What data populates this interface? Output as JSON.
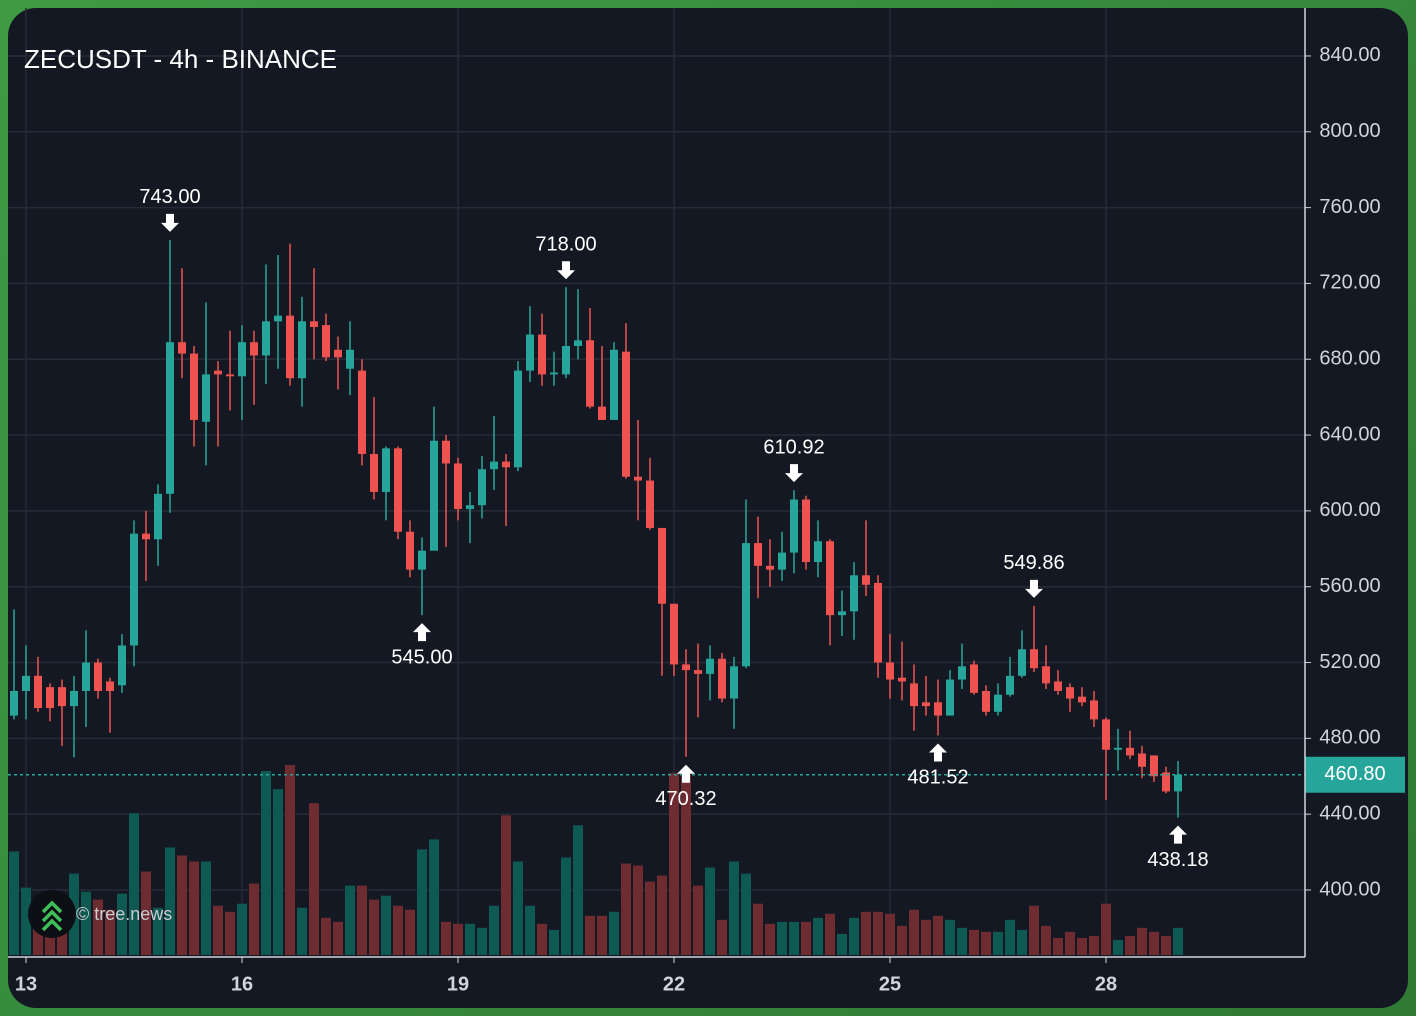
{
  "chart_data": {
    "type": "candlestick",
    "title": "ZECUSDT - 4h - BINANCE",
    "watermark": "© tree.news",
    "categories": [
      null,
      "13",
      null,
      null,
      null,
      null,
      null,
      null,
      null,
      null,
      null,
      null,
      null,
      null,
      null,
      null,
      null,
      null,
      null,
      "16",
      null,
      null,
      null,
      null,
      null,
      null,
      null,
      null,
      null,
      null,
      null,
      null,
      null,
      null,
      null,
      null,
      null,
      "19",
      null,
      null,
      null,
      null,
      null,
      null,
      null,
      null,
      null,
      null,
      null,
      null,
      null,
      null,
      null,
      null,
      null,
      "22",
      null,
      null,
      null,
      null,
      null,
      null,
      null,
      null,
      null,
      null,
      null,
      null,
      null,
      null,
      null,
      null,
      null,
      "25",
      null,
      null,
      null,
      null,
      null,
      null,
      null,
      null,
      null,
      null,
      null,
      null,
      null,
      null,
      null,
      null,
      null,
      "28",
      null,
      null,
      null,
      null,
      null,
      null
    ],
    "open": [
      492,
      505,
      513,
      507,
      507,
      497,
      505,
      520,
      510,
      508,
      529,
      588,
      585,
      609,
      689,
      683,
      647,
      674,
      672,
      671,
      689,
      682,
      700,
      703,
      670,
      700,
      698,
      685,
      675,
      674,
      630,
      610,
      633,
      589,
      569,
      579,
      637,
      625,
      601,
      603,
      622,
      626,
      623,
      674,
      693,
      672,
      672,
      687,
      690,
      655,
      648,
      684,
      618,
      616,
      591,
      551,
      519,
      516,
      514,
      522,
      501,
      518,
      583,
      571,
      569,
      578,
      606,
      573,
      584,
      545,
      547,
      566,
      562,
      520,
      512,
      509,
      499,
      499,
      492,
      511,
      519,
      505,
      494,
      503,
      513,
      527,
      518,
      510,
      507,
      502,
      500,
      490,
      474,
      475,
      472,
      471,
      462,
      452
    ],
    "high": [
      548,
      529,
      523,
      509,
      511,
      513,
      537,
      522,
      512,
      535,
      595,
      600,
      614,
      743,
      728,
      687,
      710,
      679,
      695,
      698,
      695,
      730,
      735,
      741,
      713,
      728,
      704,
      692,
      700,
      680,
      660,
      634,
      634,
      595,
      586,
      655,
      640,
      628,
      610,
      629,
      650,
      630,
      679,
      708,
      704,
      684,
      718,
      717,
      707,
      687,
      689,
      699,
      648,
      628,
      591,
      551,
      527,
      530,
      529,
      525,
      523,
      606,
      597,
      585,
      589,
      610.92,
      608,
      595,
      585,
      558,
      573,
      595,
      566,
      535,
      531,
      519,
      513,
      511,
      516,
      530,
      521,
      508,
      509,
      523,
      537,
      549.86,
      529,
      516,
      509,
      507,
      505,
      491,
      485,
      484,
      476,
      471,
      465,
      468
    ],
    "low": [
      490,
      490,
      494,
      489,
      476,
      470,
      486,
      501,
      483,
      504,
      518,
      563,
      571,
      599,
      670,
      634,
      624,
      634,
      653,
      648,
      656,
      667,
      675,
      666,
      655,
      680,
      679,
      664,
      661,
      624,
      606,
      595,
      585,
      565,
      545,
      583,
      581,
      595,
      583,
      596,
      611,
      592,
      621,
      668,
      666,
      666,
      670,
      680,
      654,
      648,
      648,
      617,
      595,
      590,
      513,
      513,
      470.32,
      491,
      500,
      499,
      485,
      517,
      554,
      560,
      563,
      567,
      569,
      565,
      529,
      534,
      532,
      555,
      512,
      501,
      500,
      484,
      492,
      481.52,
      492,
      506,
      503,
      492,
      492,
      502,
      512,
      515,
      506,
      503,
      494,
      497,
      486,
      447.5,
      463,
      469,
      459,
      457,
      451,
      438.18
    ],
    "close": [
      505,
      513,
      496,
      496,
      497,
      505,
      520,
      505,
      505,
      529,
      588,
      585,
      609,
      689,
      683,
      648,
      672,
      672,
      671,
      689,
      682,
      700,
      703,
      670,
      700,
      697,
      681,
      681,
      685,
      630,
      610,
      633,
      589,
      569,
      579,
      637,
      625,
      601,
      603,
      622,
      626,
      623,
      674,
      693,
      672,
      673,
      687,
      690,
      655,
      648,
      685,
      618,
      616,
      591,
      551,
      519,
      516,
      514,
      522,
      501,
      518,
      583,
      571,
      569,
      578,
      606,
      573,
      584,
      545,
      547,
      566,
      561,
      520,
      511,
      510,
      497,
      497,
      492,
      511,
      518,
      504,
      494,
      503,
      513,
      527,
      517,
      509,
      505,
      501,
      499,
      490,
      474,
      475,
      471,
      465,
      460,
      452,
      460.8
    ],
    "volume": [
      103,
      67,
      55,
      47,
      43,
      81,
      63,
      55,
      45,
      61,
      141,
      83,
      47,
      107,
      99,
      93,
      93,
      49,
      43,
      51,
      71,
      183,
      165,
      189,
      47,
      151,
      37,
      33,
      69,
      69,
      55,
      59,
      49,
      45,
      105,
      115,
      33,
      31,
      31,
      27,
      49,
      139,
      93,
      49,
      31,
      25,
      97,
      129,
      39,
      39,
      43,
      91,
      89,
      73,
      79,
      181,
      181,
      69,
      87,
      35,
      93,
      81,
      51,
      31,
      33,
      33,
      33,
      37,
      41,
      21,
      37,
      43,
      43,
      41,
      29,
      45,
      35,
      39,
      35,
      27,
      25,
      23,
      23,
      35,
      25,
      49,
      29,
      17,
      23,
      17,
      19,
      51,
      15,
      19,
      27,
      23,
      19,
      27
    ],
    "up_color": "#26a69a",
    "down_color": "#ef5350",
    "up_volume_color": "#0f5953",
    "down_volume_color": "#6e2b30",
    "ylim": [
      365.7,
      865.3
    ],
    "yticks": [
      {
        "value": 400,
        "label": "400.00"
      },
      {
        "value": 440,
        "label": "440.00"
      },
      {
        "value": 480,
        "label": "480.00"
      },
      {
        "value": 520,
        "label": "520.00"
      },
      {
        "value": 560,
        "label": "560.00"
      },
      {
        "value": 600,
        "label": "600.00"
      },
      {
        "value": 640,
        "label": "640.00"
      },
      {
        "value": 680,
        "label": "680.00"
      },
      {
        "value": 720,
        "label": "720.00"
      },
      {
        "value": 760,
        "label": "760.00"
      },
      {
        "value": 800,
        "label": "800.00"
      },
      {
        "value": 840,
        "label": "840.00"
      }
    ],
    "grid": true,
    "last_price": {
      "value": 460.8,
      "label": "460.80"
    },
    "annotations": [
      {
        "index": 13,
        "value": 743,
        "label": "743.00",
        "position": "above"
      },
      {
        "index": 34,
        "value": 545,
        "label": "545.00",
        "position": "below"
      },
      {
        "index": 46,
        "value": 718,
        "label": "718.00",
        "position": "above"
      },
      {
        "index": 56,
        "value": 470.32,
        "label": "470.32",
        "position": "below"
      },
      {
        "index": 65,
        "value": 610.92,
        "label": "610.92",
        "position": "above"
      },
      {
        "index": 77,
        "value": 481.52,
        "label": "481.52",
        "position": "below"
      },
      {
        "index": 85,
        "value": 549.86,
        "label": "549.86",
        "position": "above"
      },
      {
        "index": 97,
        "value": 438.18,
        "label": "438.18",
        "position": "below"
      }
    ]
  }
}
